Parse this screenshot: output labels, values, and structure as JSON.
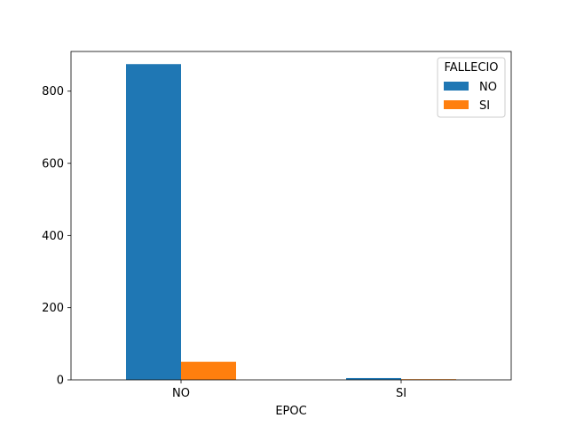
{
  "chart_data": {
    "type": "bar",
    "xlabel": "EPOC",
    "ylabel": "",
    "categories": [
      "NO",
      "SI"
    ],
    "series": [
      {
        "name": "NO",
        "values": [
          875,
          5
        ],
        "color": "#1f77b4"
      },
      {
        "name": "SI",
        "values": [
          50,
          2
        ],
        "color": "#ff7f0e"
      }
    ],
    "ylim": [
      0,
      910
    ],
    "yticks": [
      0,
      200,
      400,
      600,
      800
    ],
    "legend": {
      "title": "FALLECIO",
      "placement": "top-right"
    },
    "grid": false
  }
}
